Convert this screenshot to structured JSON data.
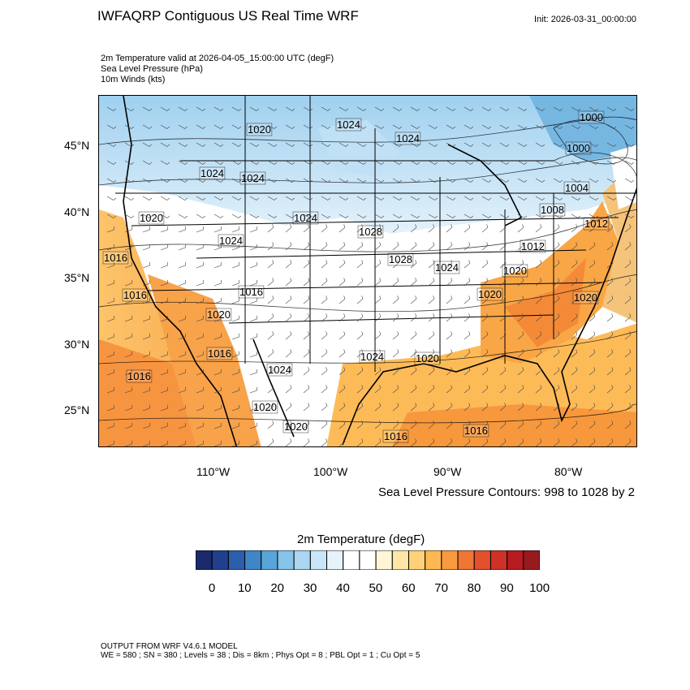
{
  "header": {
    "title": "IWFAQRP Contiguous US Real Time WRF",
    "init": "Init: 2026-03-31_00:00:00",
    "subtitle_lines": [
      "2m Temperature valid at 2026-04-05_15:00:00 UTC   (degF)",
      "Sea Level Pressure   (hPa)",
      "10m Winds   (kts)"
    ]
  },
  "map": {
    "lat_labels": [
      "45°N",
      "40°N",
      "35°N",
      "30°N",
      "25°N"
    ],
    "lon_labels": [
      "110°W",
      "100°W",
      "90°W",
      "80°W"
    ],
    "pressure_labels": [
      "1020",
      "1024",
      "1024",
      "1024",
      "1024",
      "1020",
      "1024",
      "1024",
      "1028",
      "1028",
      "1024",
      "1016",
      "1016",
      "1020",
      "1016",
      "1024",
      "1020",
      "1024",
      "1020",
      "1016",
      "1020",
      "1016",
      "1016",
      "1012",
      "1008",
      "1004",
      "1000",
      "1000",
      "1020",
      "1020",
      "1012",
      "1020",
      "1016"
    ],
    "contours_note": "Sea Level Pressure Contours: 998 to 1028 by 2"
  },
  "colorbar": {
    "title": "2m Temperature  (degF)",
    "colors": [
      "#1a2a6c",
      "#213f8f",
      "#2b5fad",
      "#3f86c7",
      "#5aa5d8",
      "#86c4ea",
      "#aad6f2",
      "#c8e6f8",
      "#e6f3fb",
      "#ffffff",
      "#ffffff",
      "#fff6d8",
      "#ffe6a6",
      "#ffd27a",
      "#fdb851",
      "#f99a3e",
      "#f07634",
      "#e2502c",
      "#cf3127",
      "#b71c22",
      "#961a1e"
    ],
    "tick_labels": [
      "0",
      "10",
      "20",
      "30",
      "40",
      "50",
      "60",
      "70",
      "80",
      "90",
      "100"
    ]
  },
  "footer": {
    "line1": "OUTPUT FROM WRF V4.6.1 MODEL",
    "line2": "WE = 580 ; SN = 380 ; Levels = 38 ; Dis = 8km ; Phys Opt = 8 ; PBL Opt = 1 ; Cu Opt = 5"
  }
}
